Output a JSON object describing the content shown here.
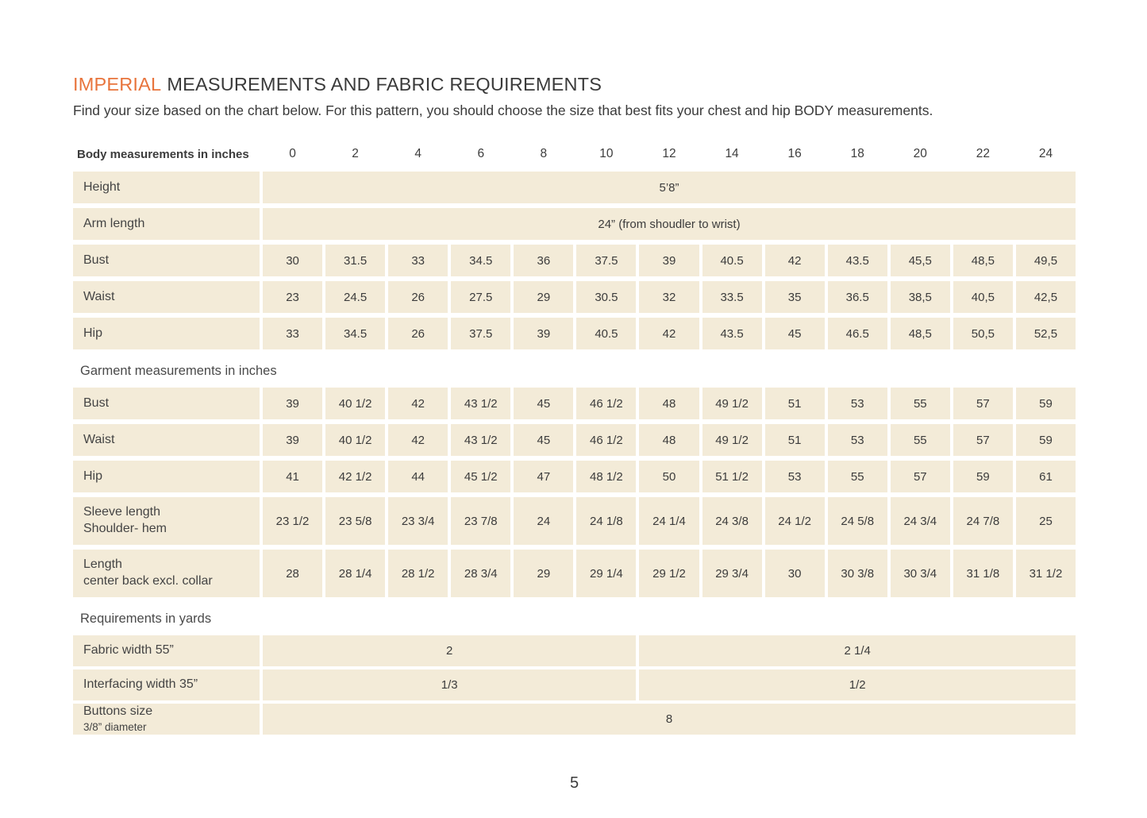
{
  "page": {
    "title_accent": "IMPERIAL",
    "title_rest": "MEASUREMENTS AND FABRIC REQUIREMENTS",
    "subtitle": "Find your size based on the chart below. For this pattern, you should choose the size that best fits your chest and hip BODY measurements.",
    "page_number": "5"
  },
  "colors": {
    "accent_orange": "#e8743c",
    "cell_beige": "#f3ebd8",
    "text_dark": "#3c3c3c"
  },
  "table": {
    "header_label": "Body measurements in inches",
    "sizes": [
      "0",
      "2",
      "4",
      "6",
      "8",
      "10",
      "12",
      "14",
      "16",
      "18",
      "20",
      "22",
      "24"
    ],
    "body_rows": [
      {
        "label": "Height",
        "span_value": "5’8”"
      },
      {
        "label": "Arm length",
        "span_value": "24” (from shoudler to wrist)"
      },
      {
        "label": "Bust",
        "values": [
          "30",
          "31.5",
          "33",
          "34.5",
          "36",
          "37.5",
          "39",
          "40.5",
          "42",
          "43.5",
          "45,5",
          "48,5",
          "49,5"
        ]
      },
      {
        "label": "Waist",
        "values": [
          "23",
          "24.5",
          "26",
          "27.5",
          "29",
          "30.5",
          "32",
          "33.5",
          "35",
          "36.5",
          "38,5",
          "40,5",
          "42,5"
        ]
      },
      {
        "label": "Hip",
        "values": [
          "33",
          "34.5",
          "26",
          "37.5",
          "39",
          "40.5",
          "42",
          "43.5",
          "45",
          "46.5",
          "48,5",
          "50,5",
          "52,5"
        ]
      }
    ],
    "garment_section_label": "Garment measurements in inches",
    "garment_rows": [
      {
        "label": "Bust",
        "values": [
          "39",
          "40 1/2",
          "42",
          "43 1/2",
          "45",
          "46 1/2",
          "48",
          "49 1/2",
          "51",
          "53",
          "55",
          "57",
          "59"
        ]
      },
      {
        "label": "Waist",
        "values": [
          "39",
          "40 1/2",
          "42",
          "43 1/2",
          "45",
          "46 1/2",
          "48",
          "49 1/2",
          "51",
          "53",
          "55",
          "57",
          "59"
        ]
      },
      {
        "label": "Hip",
        "values": [
          "41",
          "42 1/2",
          "44",
          "45 1/2",
          "47",
          "48 1/2",
          "50",
          "51 1/2",
          "53",
          "55",
          "57",
          "59",
          "61"
        ]
      },
      {
        "label": "Sleeve length",
        "label2": "Shoulder- hem",
        "values": [
          "23 1/2",
          "23 5/8",
          "23 3/4",
          "23 7/8",
          "24",
          "24 1/8",
          "24 1/4",
          "24 3/8",
          "24 1/2",
          "24 5/8",
          "24 3/4",
          "24 7/8",
          "25"
        ]
      },
      {
        "label": "Length",
        "label2": "center back excl. collar",
        "values": [
          "28",
          "28 1/4",
          "28 1/2",
          "28 3/4",
          "29",
          "29 1/4",
          "29 1/2",
          "29 3/4",
          "30",
          "30 3/8",
          "30 3/4",
          "31 1/8",
          "31 1/2"
        ]
      }
    ],
    "requirements_section_label": "Requirements in yards",
    "requirements_rows": [
      {
        "label": "Fabric width 55”",
        "left_value": "2",
        "right_value": "2 1/4"
      },
      {
        "label": "Interfacing width 35”",
        "left_value": "1/3",
        "right_value": "1/2"
      },
      {
        "label": "Buttons size",
        "label_small": "3/8” diameter",
        "span_value": "8"
      }
    ]
  }
}
